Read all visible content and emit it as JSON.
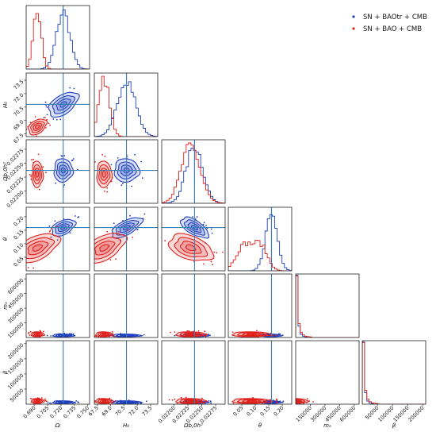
{
  "chart_data": {
    "type": "corner",
    "legend": {
      "placement": "top-right",
      "entries": [
        {
          "label": "SN + BAOtr + CMB",
          "color": "#1f3fbf"
        },
        {
          "label": "SN + BAO + CMB",
          "color": "#e0201b"
        }
      ]
    },
    "parameters": [
      {
        "label": "Ωₗ",
        "ticks": [
          "0.690",
          "0.705",
          "0.720",
          "0.735",
          "0.750"
        ],
        "tick_values": [
          0.69,
          0.705,
          0.72,
          0.735,
          0.75
        ],
        "range": [
          0.681,
          0.752
        ],
        "truth": 0.7225
      },
      {
        "label": "H₀",
        "ticks": [
          "67.5",
          "69.0",
          "70.5",
          "72.0",
          "73.5"
        ],
        "tick_values": [
          67.5,
          69.0,
          70.5,
          72.0,
          73.5
        ],
        "range": [
          67.2,
          74.3
        ],
        "truth": 70.8
      },
      {
        "label": "Ωb,0h²",
        "ticks": [
          "0.02200",
          "0.02225",
          "0.02250",
          "0.02275"
        ],
        "tick_values": [
          0.022,
          0.02225,
          0.0225,
          0.02275
        ],
        "range": [
          0.02178,
          0.02292
        ],
        "truth": 0.02237
      },
      {
        "label": "θ",
        "ticks": [
          "0.05",
          "0.10",
          "0.15",
          "0.20"
        ],
        "tick_values": [
          0.05,
          0.1,
          0.15,
          0.2
        ],
        "range": [
          0.0,
          0.235
        ],
        "truth": 0.16
      },
      {
        "label": "mₔ",
        "ticks": [
          "150000",
          "300000",
          "450000",
          "600000"
        ],
        "tick_values": [
          150000,
          300000,
          450000,
          600000
        ],
        "range": [
          0,
          650000
        ],
        "truth": 0
      },
      {
        "label": "β",
        "ticks": [
          "50000",
          "100000",
          "150000",
          "200000"
        ],
        "tick_values": [
          50000,
          100000,
          150000,
          200000
        ],
        "range": [
          0,
          210000
        ],
        "truth": 0
      }
    ],
    "series": [
      {
        "name": "SN + BAOtr + CMB",
        "color": "#1f3fbf",
        "mean": [
          0.7225,
          70.8,
          0.02237,
          0.16,
          0,
          0
        ],
        "sigma": [
          0.0075,
          1.0,
          0.00015,
          0.022,
          22000,
          6000
        ]
      },
      {
        "name": "SN + BAO + CMB",
        "color": "#e0201b",
        "mean": [
          0.6935,
          68.3,
          0.0223,
          0.085,
          0,
          0
        ],
        "sigma": [
          0.0045,
          0.6,
          0.00017,
          0.045,
          40000,
          9000
        ]
      }
    ]
  }
}
